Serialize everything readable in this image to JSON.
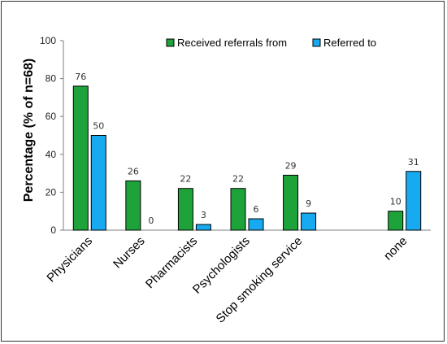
{
  "chart_data": {
    "type": "bar",
    "title": "",
    "xlabel": "",
    "ylabel": "Percentage (% of n=68)",
    "ylim": [
      0,
      100
    ],
    "yticks": [
      0,
      20,
      40,
      60,
      80,
      100
    ],
    "grid": false,
    "legend_position": "top-right",
    "categories": [
      "Physicians",
      "Nurses",
      "Pharmacists",
      "Psychologists",
      "Stop smoking service",
      "",
      "none"
    ],
    "series": [
      {
        "name": "Received referrals from",
        "color": "#1ea33a",
        "values": [
          76,
          26,
          22,
          22,
          29,
          null,
          10
        ]
      },
      {
        "name": "Referred to",
        "color": "#18aaf0",
        "values": [
          50,
          0,
          3,
          6,
          9,
          null,
          31
        ]
      }
    ]
  }
}
